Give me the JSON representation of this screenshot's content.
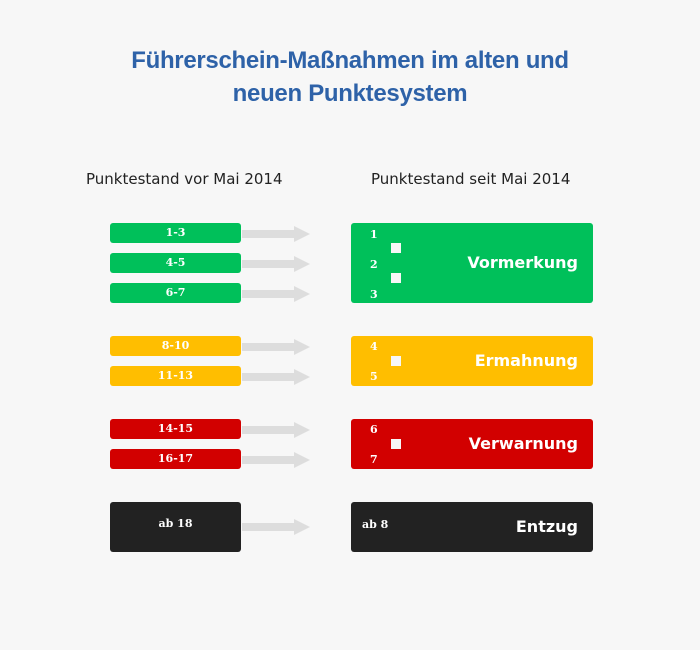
{
  "title_line1": "Führerschein-Maßnahmen im alten und",
  "title_line2": "neuen Punktesystem",
  "left_heading": "Punktestand vor Mai 2014",
  "right_heading": "Punktestand seit Mai 2014",
  "colors": {
    "green": "#00c05a",
    "yellow": "#ffbe00",
    "red": "#d20000",
    "black": "#222222",
    "arrow": "#dddddd",
    "title": "#2e62a8"
  },
  "old_ranges": [
    "1-3",
    "4-5",
    "6-7",
    "8-10",
    "11-13",
    "14-15",
    "16-17",
    "ab 18"
  ],
  "new_groups": [
    {
      "label": "Vormerkung",
      "points": [
        "1",
        "2",
        "3"
      ]
    },
    {
      "label": "Ermahnung",
      "points": [
        "4",
        "5"
      ]
    },
    {
      "label": "Verwarnung",
      "points": [
        "6",
        "7"
      ]
    },
    {
      "label": "Entzug",
      "points": [
        "ab 8"
      ]
    }
  ]
}
